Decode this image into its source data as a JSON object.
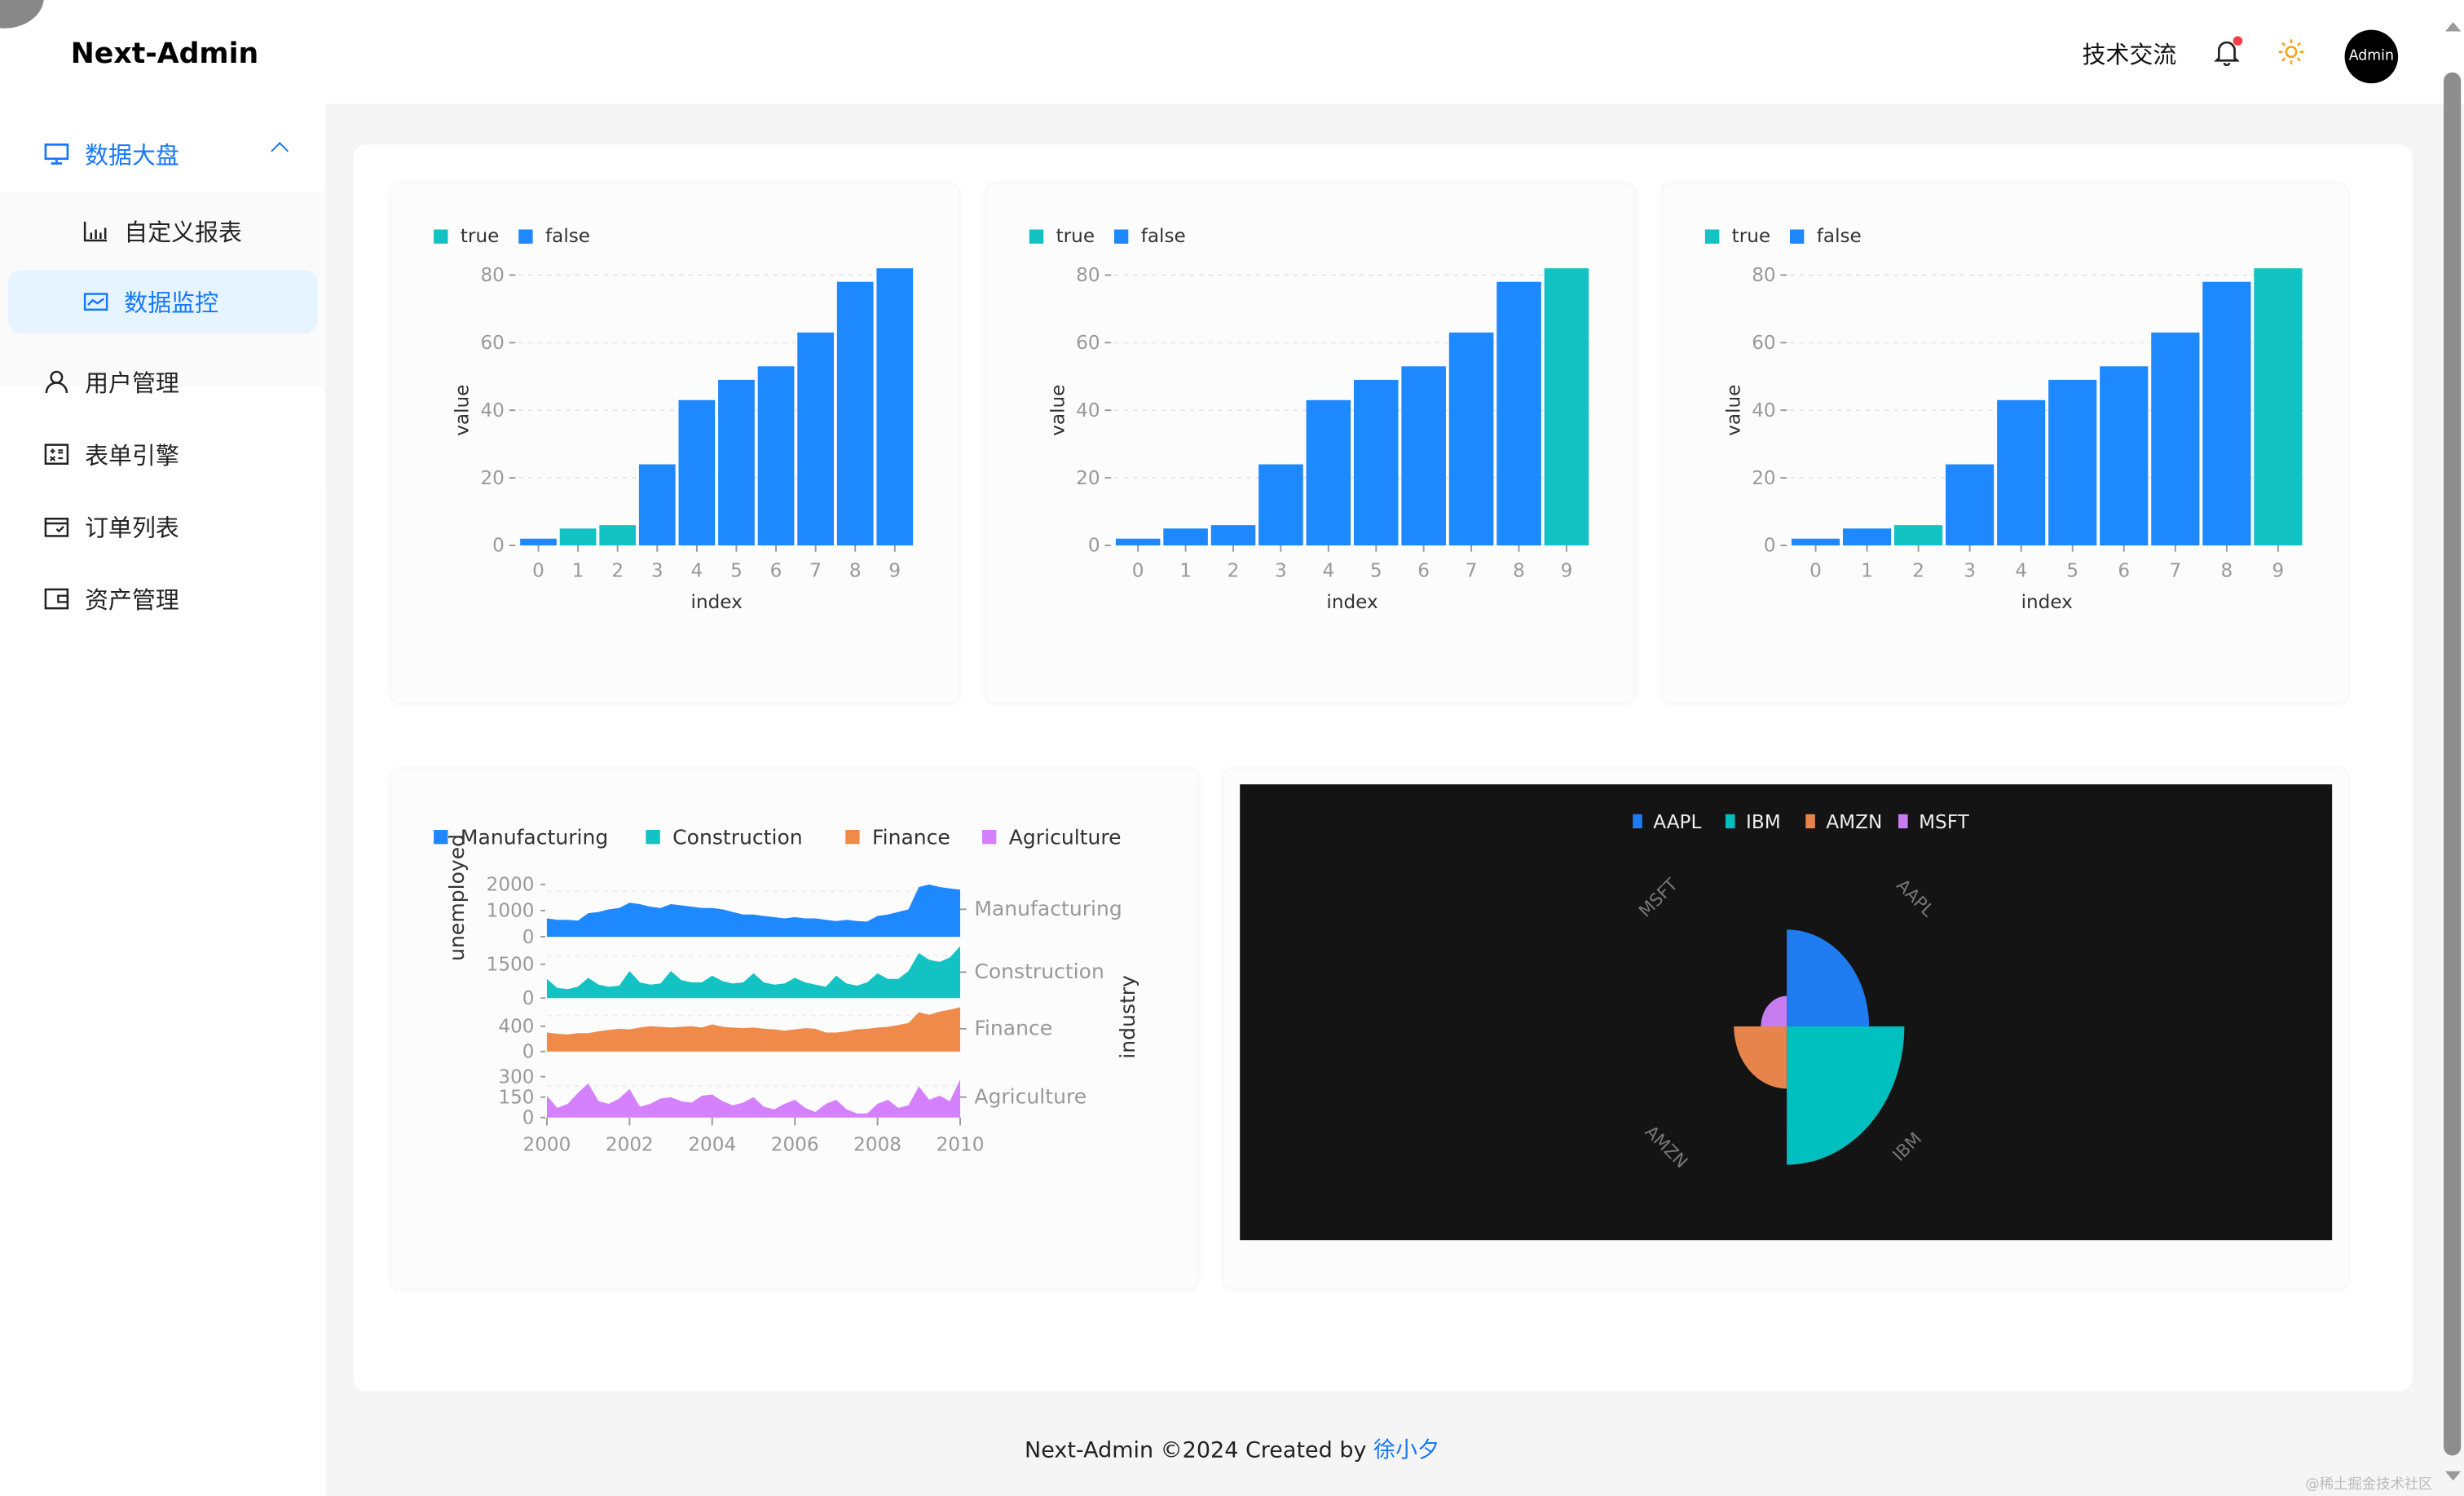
{
  "header": {
    "logo": "Next-Admin",
    "tech_link": "技术交流",
    "avatar_label": "Admin",
    "notification_dot_color": "#f5404a",
    "theme_icon": "sun-icon"
  },
  "sidebar": {
    "items": [
      {
        "label": "数据大盘",
        "icon": "monitor-icon",
        "expanded": true,
        "children": [
          {
            "label": "自定义报表",
            "icon": "bar-chart-icon"
          },
          {
            "label": "数据监控",
            "icon": "line-chart-icon",
            "active": true
          }
        ]
      },
      {
        "label": "用户管理",
        "icon": "user-icon"
      },
      {
        "label": "表单引擎",
        "icon": "calculator-icon"
      },
      {
        "label": "订单列表",
        "icon": "calendar-check-icon"
      },
      {
        "label": "资产管理",
        "icon": "wallet-icon"
      }
    ]
  },
  "colors": {
    "accent": "#1677ff",
    "true": "#13c2c2",
    "false": "#1e88ff"
  },
  "footer": {
    "text": "Next-Admin ©2024 Created by ",
    "author": "徐小夕"
  },
  "watermark": "@稀土掘金技术社区",
  "chart_data": [
    {
      "type": "bar",
      "xlabel": "index",
      "ylabel": "value",
      "ylim": [
        0,
        85
      ],
      "yticks": [
        0,
        20,
        40,
        60,
        80
      ],
      "categories": [
        "0",
        "1",
        "2",
        "3",
        "4",
        "5",
        "6",
        "7",
        "8",
        "9"
      ],
      "values": [
        2,
        5,
        6,
        24,
        43,
        49,
        53,
        63,
        78,
        82
      ],
      "flags": [
        false,
        true,
        true,
        false,
        false,
        false,
        false,
        false,
        false,
        false
      ],
      "legend": [
        "true",
        "false"
      ],
      "grid": true,
      "legend_position": "top-left"
    },
    {
      "type": "bar",
      "xlabel": "index",
      "ylabel": "value",
      "ylim": [
        0,
        85
      ],
      "yticks": [
        0,
        20,
        40,
        60,
        80
      ],
      "categories": [
        "0",
        "1",
        "2",
        "3",
        "4",
        "5",
        "6",
        "7",
        "8",
        "9"
      ],
      "values": [
        2,
        5,
        6,
        24,
        43,
        49,
        53,
        63,
        78,
        82
      ],
      "flags": [
        false,
        false,
        false,
        false,
        false,
        false,
        false,
        false,
        false,
        true
      ],
      "legend": [
        "true",
        "false"
      ],
      "grid": true,
      "legend_position": "top-left"
    },
    {
      "type": "bar",
      "xlabel": "index",
      "ylabel": "value",
      "ylim": [
        0,
        85
      ],
      "yticks": [
        0,
        20,
        40,
        60,
        80
      ],
      "categories": [
        "0",
        "1",
        "2",
        "3",
        "4",
        "5",
        "6",
        "7",
        "8",
        "9"
      ],
      "values": [
        2,
        5,
        6,
        24,
        43,
        49,
        53,
        63,
        78,
        82
      ],
      "flags": [
        false,
        false,
        true,
        false,
        false,
        false,
        false,
        false,
        false,
        true
      ],
      "legend": [
        "true",
        "false"
      ],
      "grid": true,
      "legend_position": "top-left"
    },
    {
      "type": "area",
      "xlabel": "",
      "ylabel": "unemployed",
      "facet_label": "industry",
      "x_start": 2000,
      "x_step": 0.25,
      "xticks": [
        2000,
        2002,
        2004,
        2006,
        2008,
        2010
      ],
      "series": [
        {
          "name": "Manufacturing",
          "color": "#1e88ff",
          "yticks": [
            0,
            1000,
            2000
          ],
          "ymax": 2100,
          "values": [
            700,
            650,
            650,
            620,
            900,
            950,
            1050,
            1100,
            1300,
            1250,
            1150,
            1100,
            1250,
            1200,
            1150,
            1100,
            1100,
            1050,
            950,
            850,
            850,
            800,
            750,
            700,
            750,
            700,
            700,
            650,
            600,
            650,
            600,
            580,
            800,
            850,
            950,
            1050,
            1900,
            2000,
            1900,
            1850,
            1800
          ]
        },
        {
          "name": "Construction",
          "color": "#13c2c2",
          "yticks": [
            0,
            1500
          ],
          "ymax": 2300,
          "values": [
            850,
            450,
            400,
            500,
            900,
            600,
            500,
            550,
            1200,
            700,
            600,
            650,
            1200,
            800,
            700,
            700,
            1000,
            750,
            650,
            700,
            1100,
            700,
            600,
            650,
            900,
            700,
            600,
            500,
            1000,
            650,
            550,
            700,
            1100,
            850,
            850,
            1200,
            2000,
            1700,
            1600,
            1800,
            2300
          ]
        },
        {
          "name": "Finance",
          "color": "#f08a4b",
          "yticks": [
            0,
            400
          ],
          "ymax": 720,
          "values": [
            300,
            280,
            270,
            290,
            290,
            320,
            340,
            360,
            350,
            380,
            400,
            390,
            380,
            390,
            400,
            380,
            430,
            390,
            380,
            370,
            380,
            360,
            350,
            330,
            350,
            370,
            360,
            300,
            300,
            320,
            350,
            360,
            380,
            390,
            420,
            450,
            620,
            580,
            630,
            660,
            700
          ]
        },
        {
          "name": "Agriculture",
          "color": "#d580ff",
          "yticks": [
            0,
            150,
            300
          ],
          "ymax": 300,
          "values": [
            160,
            70,
            100,
            180,
            250,
            120,
            100,
            140,
            210,
            80,
            100,
            140,
            150,
            120,
            110,
            160,
            170,
            120,
            90,
            110,
            150,
            80,
            60,
            100,
            130,
            70,
            40,
            100,
            130,
            60,
            30,
            30,
            100,
            130,
            70,
            90,
            230,
            130,
            160,
            120,
            280
          ]
        }
      ],
      "legend_position": "top-left",
      "grid": true
    },
    {
      "type": "polar-rose",
      "theme": "dark",
      "background": "#141414",
      "categories": [
        "AAPL",
        "IBM",
        "AMZN",
        "MSFT"
      ],
      "values": [
        0.7,
        1.0,
        0.45,
        0.22
      ],
      "colors": [
        "#1e7cf0",
        "#00bfbf",
        "#e6844c",
        "#c77cf0"
      ],
      "legend_position": "top"
    }
  ]
}
